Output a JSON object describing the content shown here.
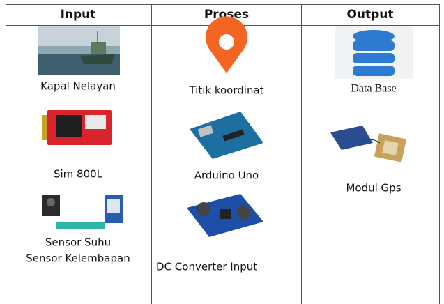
{
  "header": [
    "Input",
    "Proses",
    "Output"
  ],
  "columns": [
    {
      "items": [
        {
          "lines": [
            "Kapal Nelayan"
          ]
        },
        {
          "lines": [
            "Sim 800L"
          ]
        },
        {
          "lines": [
            "Sensor Suhu",
            "Sensor Kelembapan"
          ]
        }
      ]
    },
    {
      "items": [
        {
          "lines": [
            "Titik koordinat"
          ]
        },
        {
          "lines": [
            "Arduino Uno"
          ]
        },
        {
          "lines": [
            "DC Converter Input"
          ]
        }
      ]
    },
    {
      "items": [
        {
          "lines": [
            "Data Base"
          ]
        },
        {
          "lines": [
            "Modul Gps"
          ]
        }
      ]
    }
  ]
}
